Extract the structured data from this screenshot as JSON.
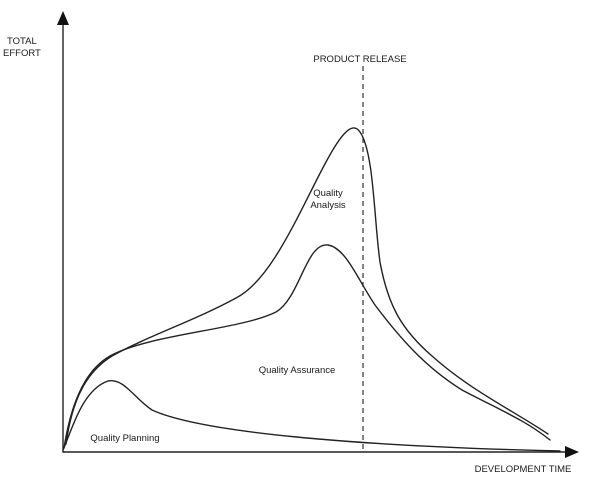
{
  "axes": {
    "y_label_line1": "TOTAL",
    "y_label_line2": "EFFORT",
    "x_label": "DEVELOPMENT TIME"
  },
  "markers": {
    "release_label": "PRODUCT RELEASE"
  },
  "regions": {
    "analysis_line1": "Quality",
    "analysis_line2": "Analysis",
    "assurance": "Quality Assurance",
    "planning": "Quality Planning"
  },
  "colors": {
    "stroke": "#222222",
    "background": "#ffffff"
  }
}
